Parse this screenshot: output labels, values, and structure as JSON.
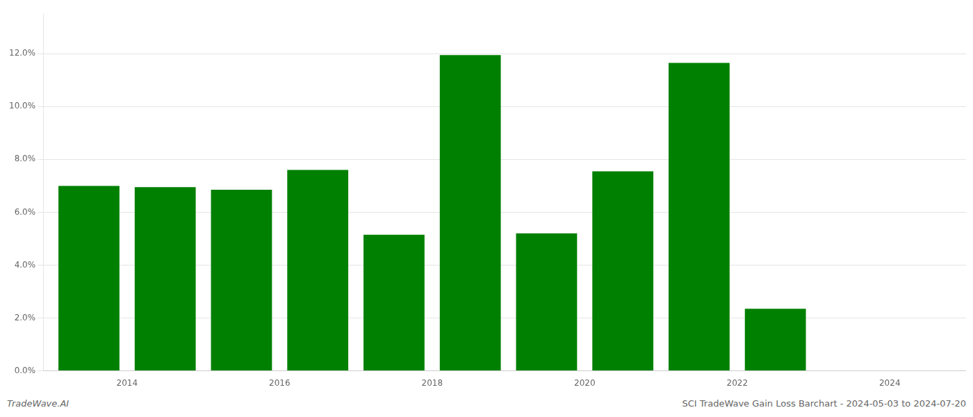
{
  "chart_data": {
    "type": "bar",
    "x": [
      2013,
      2014,
      2015,
      2016,
      2017,
      2018,
      2019,
      2020,
      2021,
      2022
    ],
    "values": [
      0.07,
      0.0695,
      0.0685,
      0.076,
      0.0515,
      0.1195,
      0.052,
      0.0755,
      0.1165,
      0.0235
    ],
    "color": "#008000",
    "xlim": [
      2012.4,
      2024.5
    ],
    "xticks": [
      {
        "value": 2013.5,
        "label": "2014"
      },
      {
        "value": 2015.5,
        "label": "2016"
      },
      {
        "value": 2017.5,
        "label": "2018"
      },
      {
        "value": 2019.5,
        "label": "2020"
      },
      {
        "value": 2021.5,
        "label": "2022"
      },
      {
        "value": 2023.5,
        "label": "2024"
      }
    ],
    "ylim": [
      0,
      0.135
    ],
    "yticks": [
      {
        "value": 0.0,
        "label": "0.0%"
      },
      {
        "value": 0.02,
        "label": "2.0%"
      },
      {
        "value": 0.04,
        "label": "4.0%"
      },
      {
        "value": 0.06,
        "label": "6.0%"
      },
      {
        "value": 0.08,
        "label": "8.0%"
      },
      {
        "value": 0.1,
        "label": "10.0%"
      },
      {
        "value": 0.12,
        "label": "12.0%"
      }
    ],
    "grid": "y",
    "annotations": [
      "TradeWave.AI",
      "SCI TradeWave Gain Loss Barchart - 2024-05-03 to 2024-07-20"
    ]
  }
}
